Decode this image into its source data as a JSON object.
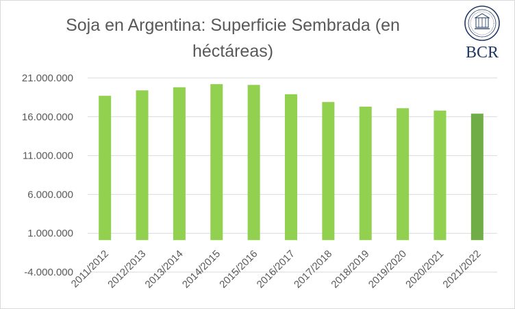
{
  "chart_data": {
    "type": "bar",
    "title": "Soja en Argentina: Superficie Sembrada (en héctáreas)",
    "xlabel": "",
    "ylabel": "",
    "ylim": [
      -4000000,
      21000000
    ],
    "yticks": [
      21000000,
      16000000,
      11000000,
      6000000,
      1000000,
      -4000000
    ],
    "ytick_labels": [
      "21.000.000",
      "16.000.000",
      "11.000.000",
      "6.000.000",
      "1.000.000",
      "-4.000.000"
    ],
    "categories": [
      "2011/2012",
      "2012/2013",
      "2013/2014",
      "2014/2015",
      "2015/2016",
      "2016/2017",
      "2017/2018",
      "2018/2019",
      "2019/2020",
      "2020/2021",
      "2021/2022"
    ],
    "values": [
      18700000,
      19400000,
      19800000,
      20200000,
      20100000,
      18900000,
      17900000,
      17300000,
      17100000,
      16800000,
      16400000
    ],
    "colors": [
      "#92d050",
      "#92d050",
      "#92d050",
      "#92d050",
      "#92d050",
      "#92d050",
      "#92d050",
      "#92d050",
      "#92d050",
      "#92d050",
      "#70ad47"
    ],
    "grid": true,
    "legend": "none"
  },
  "logo": {
    "text": "BCR",
    "color": "#1f3864"
  }
}
